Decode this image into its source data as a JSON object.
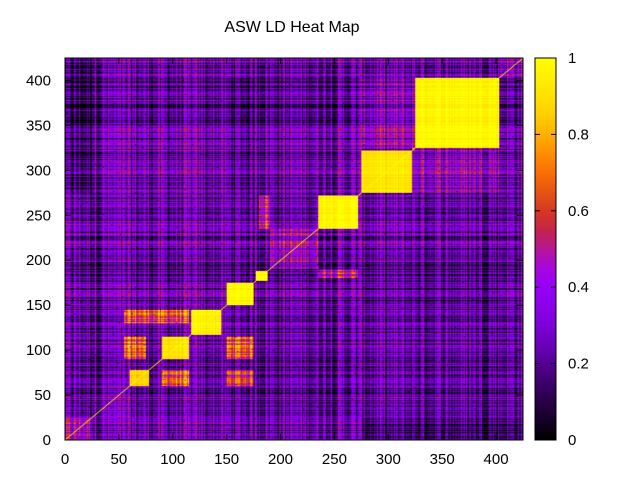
{
  "chart_data": {
    "type": "heatmap",
    "title": "ASW LD Heat Map",
    "xlabel": "",
    "ylabel": "",
    "xlim": [
      0,
      425
    ],
    "ylim": [
      0,
      425
    ],
    "x_ticks": [
      0,
      50,
      100,
      150,
      200,
      250,
      300,
      350,
      400
    ],
    "y_ticks": [
      0,
      50,
      100,
      150,
      200,
      250,
      300,
      350,
      400
    ],
    "colorbar": {
      "range": [
        0,
        1
      ],
      "ticks": [
        0,
        0.2,
        0.4,
        0.6,
        0.8,
        1
      ],
      "palette": [
        "#000000",
        "#3a0066",
        "#7a00d6",
        "#a000ff",
        "#cc2a2a",
        "#ff7700",
        "#ffd400",
        "#ffff00"
      ]
    },
    "n_cells": 425,
    "diagonal_value": 1,
    "background_value": 0.2,
    "blocks": [
      {
        "start": 0,
        "end": 25,
        "value": 0.35
      },
      {
        "start": 25,
        "end": 60,
        "value": 0.25
      },
      {
        "start": 60,
        "end": 78,
        "value": 0.85
      },
      {
        "start": 90,
        "end": 115,
        "value": 0.9
      },
      {
        "start": 117,
        "end": 145,
        "value": 0.95
      },
      {
        "start": 150,
        "end": 175,
        "value": 0.97
      },
      {
        "start": 177,
        "end": 188,
        "value": 1.0
      },
      {
        "start": 190,
        "end": 235,
        "value": 0.35
      },
      {
        "start": 235,
        "end": 272,
        "value": 0.97
      },
      {
        "start": 275,
        "end": 322,
        "value": 0.9
      },
      {
        "start": 322,
        "end": 325,
        "value": 0.5
      },
      {
        "start": 325,
        "end": 403,
        "value": 0.97
      },
      {
        "start": 403,
        "end": 425,
        "value": 0.3
      }
    ],
    "cross_regions": [
      {
        "r0": 60,
        "r1": 78,
        "c0": 90,
        "c1": 115,
        "value": 0.6
      },
      {
        "r0": 60,
        "r1": 78,
        "c0": 150,
        "c1": 175,
        "value": 0.55
      },
      {
        "r0": 90,
        "r1": 115,
        "c0": 55,
        "c1": 75,
        "value": 0.6
      },
      {
        "r0": 90,
        "r1": 115,
        "c0": 150,
        "c1": 175,
        "value": 0.6
      },
      {
        "r0": 130,
        "r1": 145,
        "c0": 55,
        "c1": 115,
        "value": 0.6
      },
      {
        "r0": 180,
        "r1": 190,
        "c0": 235,
        "c1": 272,
        "value": 0.5
      },
      {
        "r0": 235,
        "r1": 272,
        "c0": 180,
        "c1": 190,
        "value": 0.5
      },
      {
        "r0": 275,
        "r1": 325,
        "c0": 325,
        "c1": 403,
        "value": 0.3
      },
      {
        "r0": 325,
        "r1": 403,
        "c0": 275,
        "c1": 325,
        "value": 0.3
      },
      {
        "r0": 150,
        "r1": 175,
        "c0": 275,
        "c1": 403,
        "value": 0.15
      },
      {
        "r0": 275,
        "r1": 403,
        "c0": 150,
        "c1": 175,
        "value": 0.15
      },
      {
        "r0": 0,
        "r1": 25,
        "c0": 275,
        "c1": 425,
        "value": 0.08
      },
      {
        "r0": 275,
        "r1": 425,
        "c0": 0,
        "c1": 25,
        "value": 0.08
      }
    ]
  }
}
